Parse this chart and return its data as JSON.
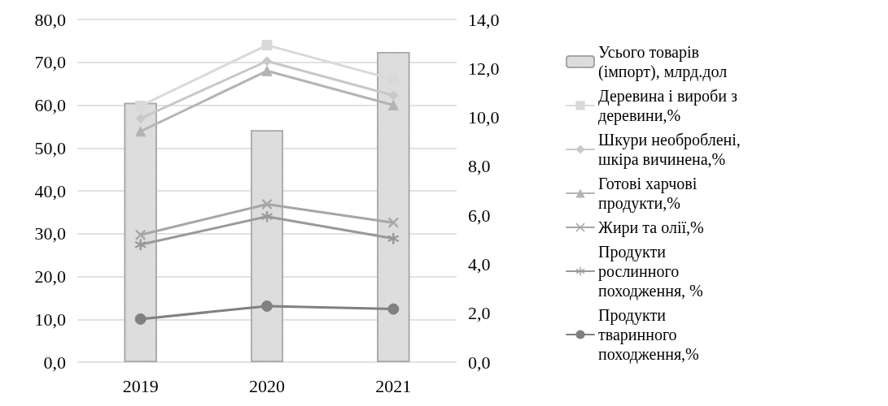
{
  "chart_data": {
    "type": "bar",
    "categories": [
      "2019",
      "2020",
      "2021"
    ],
    "series": [
      {
        "name": "Усього товарів (імпорт), млрд.дол",
        "color": "#d9d9d9",
        "values": [
          60.5,
          54.1,
          72.4
        ]
      },
      {
        "name": "Деревина і вироби з деревини,%",
        "type": "line",
        "axis": "y2",
        "color": "#d9d9d9",
        "marker": "square",
        "values": [
          10.47,
          12.95,
          11.55
        ]
      },
      {
        "name": "Шкури необроблені, шкіра вичинена,%",
        "type": "line",
        "axis": "y2",
        "color": "#c8c8c8",
        "marker": "diamond",
        "values": [
          9.96,
          12.3,
          10.9
        ]
      },
      {
        "name": "Готові харчові продукти,%",
        "type": "line",
        "axis": "y2",
        "color": "#b4b4b4",
        "marker": "triangle",
        "values": [
          9.43,
          11.9,
          10.5
        ]
      },
      {
        "name": "Жири та олії,%",
        "type": "line",
        "axis": "y2",
        "color": "#a6a6a6",
        "marker": "cross",
        "values": [
          5.2,
          6.45,
          5.7
        ]
      },
      {
        "name": "Продукти рослинного походження, %",
        "type": "line",
        "axis": "y2",
        "color": "#999999",
        "marker": "star",
        "values": [
          4.8,
          5.95,
          5.05
        ]
      },
      {
        "name": "Продукти тваринного походження,%",
        "type": "line",
        "axis": "y2",
        "color": "#808080",
        "marker": "circle",
        "values": [
          1.76,
          2.29,
          2.17
        ]
      }
    ],
    "ylim": [
      0,
      80
    ],
    "yticks": [
      {
        "value": 0,
        "label": "0,0"
      },
      {
        "value": 10,
        "label": "10,0"
      },
      {
        "value": 20,
        "label": "20,0"
      },
      {
        "value": 30,
        "label": "30,0"
      },
      {
        "value": 40,
        "label": "40,0"
      },
      {
        "value": 50,
        "label": "50,0"
      },
      {
        "value": 60,
        "label": "60,0"
      },
      {
        "value": 70,
        "label": "70,0"
      },
      {
        "value": 80,
        "label": "80,0"
      }
    ],
    "y2lim": [
      0,
      14
    ],
    "y2ticks": [
      {
        "value": 0,
        "label": "0,0"
      },
      {
        "value": 2,
        "label": "2,0"
      },
      {
        "value": 4,
        "label": "4,0"
      },
      {
        "value": 6,
        "label": "6,0"
      },
      {
        "value": 8,
        "label": "8,0"
      },
      {
        "value": 10,
        "label": "10,0"
      },
      {
        "value": 12,
        "label": "12,0"
      },
      {
        "value": 14,
        "label": "14,0"
      }
    ],
    "grid": "y",
    "legend": "right",
    "line_style": "solid"
  }
}
